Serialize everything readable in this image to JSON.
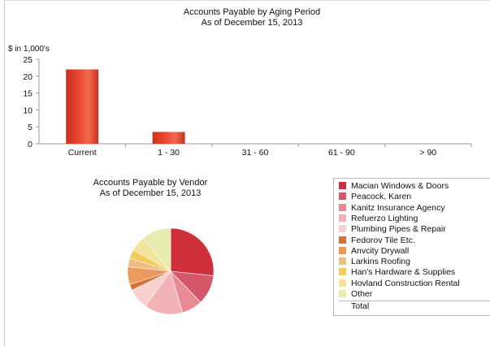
{
  "bar_chart": {
    "title": "Accounts Payable by Aging Period",
    "subtitle": "As of December 15, 2013",
    "unit_label": "$ in 1,000's"
  },
  "pie_chart": {
    "title": "Accounts Payable by Vendor",
    "subtitle": "As of December 15, 2013"
  },
  "legend": {
    "items": [
      {
        "label": "Macian Windows & Doors",
        "color": "#d02f3c"
      },
      {
        "label": "Peacock, Karen",
        "color": "#d4576a"
      },
      {
        "label": "Kanitz Insurance Agency",
        "color": "#e88a96"
      },
      {
        "label": "Refuerzo Lighting",
        "color": "#f2b3b8"
      },
      {
        "label": "Plumbing Pipes & Repair",
        "color": "#f8d1cf"
      },
      {
        "label": "Fedorov Tile Etc.",
        "color": "#d9703a"
      },
      {
        "label": "Anvcity Drywall",
        "color": "#ec9a5c"
      },
      {
        "label": "Larkins Roofing",
        "color": "#f2bb80"
      },
      {
        "label": "Han's Hardware & Supplies",
        "color": "#f5cb5a"
      },
      {
        "label": "Hovland Construction Rental",
        "color": "#f4e39a"
      },
      {
        "label": "Other",
        "color": "#e6ecb0"
      }
    ],
    "total_label": "Total"
  },
  "chart_data": [
    {
      "type": "bar",
      "title": "Accounts Payable by Aging Period",
      "subtitle": "As of December 15, 2013",
      "ylabel": "$ in 1,000's",
      "categories": [
        "Current",
        "1 - 30",
        "31 - 60",
        "61 - 90",
        "> 90"
      ],
      "values": [
        22,
        3.5,
        0,
        0,
        0
      ],
      "ylim": [
        0,
        25
      ],
      "yticks": [
        0,
        5,
        10,
        15,
        20,
        25
      ],
      "bar_color": "#e8432d",
      "grid": false
    },
    {
      "type": "pie",
      "title": "Accounts Payable by Vendor",
      "subtitle": "As of December 15, 2013",
      "labels": [
        "Macian Windows & Doors",
        "Peacock, Karen",
        "Kanitz Insurance Agency",
        "Refuerzo Lighting",
        "Plumbing Pipes & Repair",
        "Fedorov Tile Etc.",
        "Anvcity Drywall",
        "Larkins Roofing",
        "Han's Hardware & Supplies",
        "Hovland Construction Rental",
        "Other"
      ],
      "values": [
        24,
        10,
        7,
        13,
        7,
        2,
        6,
        3,
        3,
        5,
        10
      ],
      "colors": [
        "#d02f3c",
        "#d4576a",
        "#e88a96",
        "#f2b3b8",
        "#f8d1cf",
        "#d9703a",
        "#ec9a5c",
        "#f2bb80",
        "#f5cb5a",
        "#f4e39a",
        "#e6ecb0"
      ],
      "legend_position": "right"
    }
  ]
}
